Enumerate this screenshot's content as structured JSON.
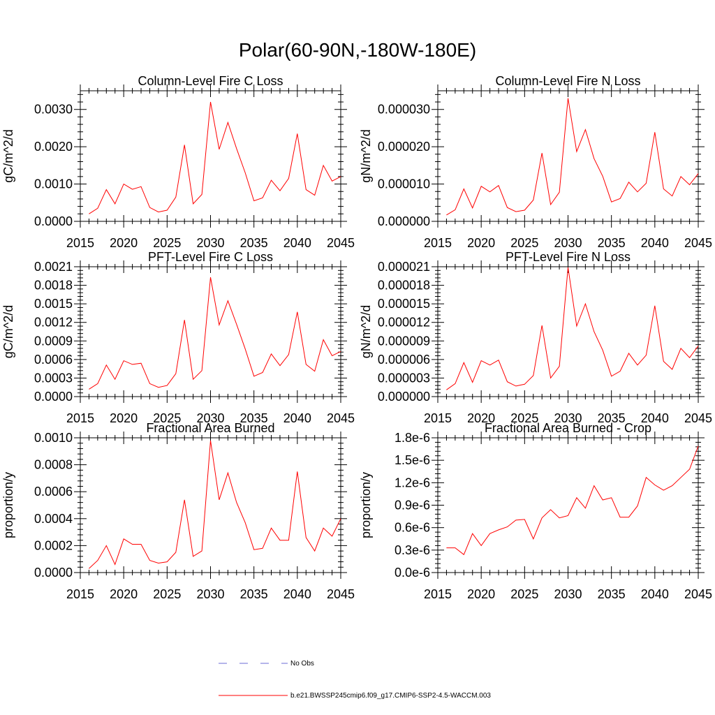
{
  "figure_title": "Polar(60-90N,-180W-180E)",
  "colors": {
    "model": "#ff0000",
    "obs": "#6b6bd6",
    "axis": "#000000"
  },
  "legend": {
    "obs_label": "No Obs",
    "model_label": "b.e21.BWSSP245cmip6.f09_g17.CMIP6-SSP2-4.5-WACCM.003"
  },
  "chart_data": [
    {
      "type": "line",
      "title": "Column-Level Fire C Loss",
      "xlabel": "",
      "ylabel": "gC/m^2/d",
      "xlim": [
        2015,
        2045
      ],
      "ylim": [
        0,
        0.0035
      ],
      "xticks": [
        2015,
        2020,
        2025,
        2030,
        2035,
        2040,
        2045
      ],
      "xtick_labels": [
        "2015",
        "2020",
        "2025",
        "2030",
        "2035",
        "2040",
        "2045"
      ],
      "yticks": [
        0,
        0.001,
        0.002,
        0.003
      ],
      "ytick_labels": [
        "0.0000",
        "0.0010",
        "0.0020",
        "0.0030"
      ],
      "x": [
        2016,
        2017,
        2018,
        2019,
        2020,
        2021,
        2022,
        2023,
        2024,
        2025,
        2026,
        2027,
        2028,
        2029,
        2030,
        2031,
        2032,
        2033,
        2034,
        2035,
        2036,
        2037,
        2038,
        2039,
        2040,
        2041,
        2042,
        2043,
        2044,
        2045
      ],
      "series": [
        {
          "name": "b.e21.BWSSP245cmip6.f09_g17.CMIP6-SSP2-4.5-WACCM.003",
          "values": [
            0.0002,
            0.00035,
            0.00085,
            0.00047,
            0.001,
            0.00086,
            0.00093,
            0.00037,
            0.00025,
            0.0003,
            0.00065,
            0.00205,
            0.00047,
            0.00072,
            0.0032,
            0.00193,
            0.00265,
            0.00195,
            0.0013,
            0.00055,
            0.00063,
            0.0011,
            0.00082,
            0.00115,
            0.00235,
            0.00085,
            0.0007,
            0.0015,
            0.00108,
            0.0012
          ]
        }
      ]
    },
    {
      "type": "line",
      "title": "Column-Level Fire N Loss",
      "xlabel": "",
      "ylabel": "gN/m^2/d",
      "xlim": [
        2015,
        2045
      ],
      "ylim": [
        0,
        3.5e-05
      ],
      "xticks": [
        2015,
        2020,
        2025,
        2030,
        2035,
        2040,
        2045
      ],
      "xtick_labels": [
        "2015",
        "2020",
        "2025",
        "2030",
        "2035",
        "2040",
        "2045"
      ],
      "yticks": [
        0,
        1e-05,
        2e-05,
        3e-05
      ],
      "ytick_labels": [
        "0.000000",
        "0.000010",
        "0.000020",
        "0.000030"
      ],
      "x": [
        2016,
        2017,
        2018,
        2019,
        2020,
        2021,
        2022,
        2023,
        2024,
        2025,
        2026,
        2027,
        2028,
        2029,
        2030,
        2031,
        2032,
        2033,
        2034,
        2035,
        2036,
        2037,
        2038,
        2039,
        2040,
        2041,
        2042,
        2043,
        2044,
        2045
      ],
      "series": [
        {
          "name": "b.e21.BWSSP245cmip6.f09_g17.CMIP6-SSP2-4.5-WACCM.003",
          "values": [
            1.7e-06,
            3.1e-06,
            8.7e-06,
            3.6e-06,
            9.4e-06,
            7.9e-06,
            9.6e-06,
            3.7e-06,
            2.6e-06,
            3e-06,
            5.7e-06,
            1.83e-05,
            4.5e-06,
            7.8e-06,
            3.3e-05,
            1.87e-05,
            2.46e-05,
            1.68e-05,
            1.21e-05,
            5.2e-06,
            6.1e-06,
            1.05e-05,
            7.9e-06,
            1.02e-05,
            2.39e-05,
            8.7e-06,
            6.8e-06,
            1.2e-05,
            9.8e-06,
            1.28e-05
          ]
        }
      ]
    },
    {
      "type": "line",
      "title": "PFT-Level Fire C Loss",
      "xlabel": "",
      "ylabel": "gC/m^2/d",
      "xlim": [
        2015,
        2045
      ],
      "ylim": [
        0,
        0.0021
      ],
      "xticks": [
        2015,
        2020,
        2025,
        2030,
        2035,
        2040,
        2045
      ],
      "xtick_labels": [
        "2015",
        "2020",
        "2025",
        "2030",
        "2035",
        "2040",
        "2045"
      ],
      "yticks": [
        0,
        0.0003,
        0.0006,
        0.0009,
        0.0012,
        0.0015,
        0.0018,
        0.0021
      ],
      "ytick_labels": [
        "0.0000",
        "0.0003",
        "0.0006",
        "0.0009",
        "0.0012",
        "0.0015",
        "0.0018",
        "0.0021"
      ],
      "x": [
        2016,
        2017,
        2018,
        2019,
        2020,
        2021,
        2022,
        2023,
        2024,
        2025,
        2026,
        2027,
        2028,
        2029,
        2030,
        2031,
        2032,
        2033,
        2034,
        2035,
        2036,
        2037,
        2038,
        2039,
        2040,
        2041,
        2042,
        2043,
        2044,
        2045
      ],
      "series": [
        {
          "name": "b.e21.BWSSP245cmip6.f09_g17.CMIP6-SSP2-4.5-WACCM.003",
          "values": [
            0.00012,
            0.00021,
            0.00051,
            0.00028,
            0.00058,
            0.00052,
            0.00054,
            0.00021,
            0.00015,
            0.00018,
            0.00037,
            0.00124,
            0.00028,
            0.00042,
            0.00193,
            0.00116,
            0.00155,
            0.00117,
            0.00077,
            0.00033,
            0.00039,
            0.00069,
            0.0005,
            0.00068,
            0.00137,
            0.00052,
            0.00041,
            0.00092,
            0.00066,
            0.00073
          ]
        }
      ]
    },
    {
      "type": "line",
      "title": "PFT-Level Fire N Loss",
      "xlabel": "",
      "ylabel": "gN/m^2/d",
      "xlim": [
        2015,
        2045
      ],
      "ylim": [
        0,
        2.1e-05
      ],
      "xticks": [
        2015,
        2020,
        2025,
        2030,
        2035,
        2040,
        2045
      ],
      "xtick_labels": [
        "2015",
        "2020",
        "2025",
        "2030",
        "2035",
        "2040",
        "2045"
      ],
      "yticks": [
        0,
        3e-06,
        6e-06,
        9e-06,
        1.2e-05,
        1.5e-05,
        1.8e-05,
        2.1e-05
      ],
      "ytick_labels": [
        "0.000000",
        "0.000003",
        "0.000006",
        "0.000009",
        "0.000012",
        "0.000015",
        "0.000018",
        "0.000021"
      ],
      "x": [
        2016,
        2017,
        2018,
        2019,
        2020,
        2021,
        2022,
        2023,
        2024,
        2025,
        2026,
        2027,
        2028,
        2029,
        2030,
        2031,
        2032,
        2033,
        2034,
        2035,
        2036,
        2037,
        2038,
        2039,
        2040,
        2041,
        2042,
        2043,
        2044,
        2045
      ],
      "series": [
        {
          "name": "b.e21.BWSSP245cmip6.f09_g17.CMIP6-SSP2-4.5-WACCM.003",
          "values": [
            1.1e-06,
            2.1e-06,
            5.5e-06,
            2.3e-06,
            5.8e-06,
            5.1e-06,
            5.9e-06,
            2.4e-06,
            1.7e-06,
            2e-06,
            3.4e-06,
            1.15e-05,
            3e-06,
            4.9e-06,
            2.09e-05,
            1.14e-05,
            1.5e-05,
            1.05e-05,
            7.5e-06,
            3.3e-06,
            4.1e-06,
            7e-06,
            5.1e-06,
            6.7e-06,
            1.47e-05,
            5.7e-06,
            4.4e-06,
            7.8e-06,
            6.3e-06,
            8.2e-06
          ]
        }
      ]
    },
    {
      "type": "line",
      "title": "Fractional Area Burned",
      "xlabel": "",
      "ylabel": "proportion/y",
      "xlim": [
        2015,
        2045
      ],
      "ylim": [
        0,
        0.001
      ],
      "xticks": [
        2015,
        2020,
        2025,
        2030,
        2035,
        2040,
        2045
      ],
      "xtick_labels": [
        "2015",
        "2020",
        "2025",
        "2030",
        "2035",
        "2040",
        "2045"
      ],
      "yticks": [
        0,
        0.0002,
        0.0004,
        0.0006,
        0.0008,
        0.001
      ],
      "ytick_labels": [
        "0.0000",
        "0.0002",
        "0.0004",
        "0.0006",
        "0.0008",
        "0.0010"
      ],
      "x": [
        2016,
        2017,
        2018,
        2019,
        2020,
        2021,
        2022,
        2023,
        2024,
        2025,
        2026,
        2027,
        2028,
        2029,
        2030,
        2031,
        2032,
        2033,
        2034,
        2035,
        2036,
        2037,
        2038,
        2039,
        2040,
        2041,
        2042,
        2043,
        2044,
        2045
      ],
      "series": [
        {
          "name": "b.e21.BWSSP245cmip6.f09_g17.CMIP6-SSP2-4.5-WACCM.003",
          "values": [
            3e-05,
            9e-05,
            0.0002,
            6e-05,
            0.00025,
            0.00021,
            0.00021,
            9e-05,
            7e-05,
            8e-05,
            0.00015,
            0.00054,
            0.00012,
            0.00016,
            0.00098,
            0.00054,
            0.00074,
            0.00052,
            0.00037,
            0.00017,
            0.00018,
            0.00033,
            0.00024,
            0.00024,
            0.00075,
            0.00026,
            0.00016,
            0.00033,
            0.00027,
            0.0004
          ]
        }
      ]
    },
    {
      "type": "line",
      "title": "Fractional Area Burned - Crop",
      "xlabel": "",
      "ylabel": "proportion/y",
      "xlim": [
        2015,
        2045
      ],
      "ylim": [
        0,
        1.8e-06
      ],
      "xticks": [
        2015,
        2020,
        2025,
        2030,
        2035,
        2040,
        2045
      ],
      "xtick_labels": [
        "2015",
        "2020",
        "2025",
        "2030",
        "2035",
        "2040",
        "2045"
      ],
      "yticks": [
        0,
        3e-07,
        6e-07,
        9e-07,
        1.2e-06,
        1.5e-06,
        1.8e-06
      ],
      "ytick_labels": [
        "0.0e-6",
        "0.3e-6",
        "0.6e-6",
        "0.9e-6",
        "1.2e-6",
        "1.5e-6",
        "1.8e-6"
      ],
      "x": [
        2016,
        2017,
        2018,
        2019,
        2020,
        2021,
        2022,
        2023,
        2024,
        2025,
        2026,
        2027,
        2028,
        2029,
        2030,
        2031,
        2032,
        2033,
        2034,
        2035,
        2036,
        2037,
        2038,
        2039,
        2040,
        2041,
        2042,
        2043,
        2044,
        2045
      ],
      "series": [
        {
          "name": "b.e21.BWSSP245cmip6.f09_g17.CMIP6-SSP2-4.5-WACCM.003",
          "values": [
            3.3e-07,
            3.3e-07,
            2.4e-07,
            5.2e-07,
            3.6e-07,
            5.2e-07,
            5.7e-07,
            6.1e-07,
            7e-07,
            7.1e-07,
            4.5e-07,
            7.3e-07,
            8.4e-07,
            7.3e-07,
            7.6e-07,
            1e-06,
            8.6e-07,
            1.16e-06,
            9.7e-07,
            1e-06,
            7.4e-07,
            7.4e-07,
            8.9e-07,
            1.27e-06,
            1.17e-06,
            1.1e-06,
            1.16e-06,
            1.27e-06,
            1.38e-06,
            1.69e-06
          ]
        }
      ]
    }
  ]
}
